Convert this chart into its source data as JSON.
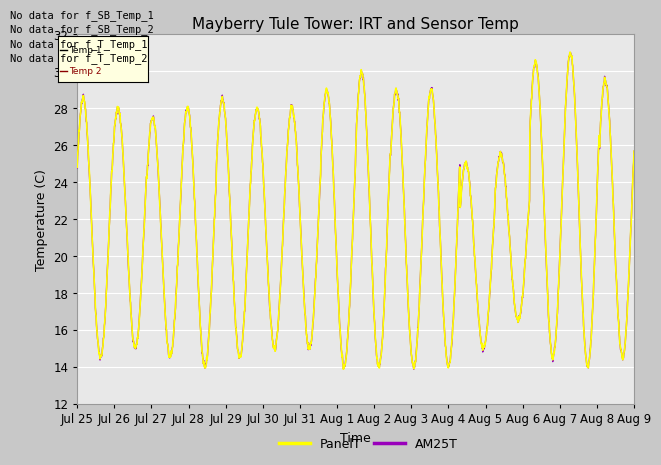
{
  "title": "Mayberry Tule Tower: IRT and Sensor Temp",
  "xlabel": "Time",
  "ylabel": "Temperature (C)",
  "ylim": [
    12,
    32
  ],
  "yticks": [
    12,
    14,
    16,
    18,
    20,
    22,
    24,
    26,
    28,
    30,
    32
  ],
  "xtick_labels": [
    "Jul 25",
    "Jul 26",
    "Jul 27",
    "Jul 28",
    "Jul 29",
    "Jul 30",
    "Jul 31",
    "Aug 1",
    "Aug 2",
    "Aug 3",
    "Aug 4",
    "Aug 5",
    "Aug 6",
    "Aug 7",
    "Aug 8",
    "Aug 9"
  ],
  "panel_color": "#ffff00",
  "am25_color": "#9900bb",
  "no_data_texts": [
    "No data for f_SB_Temp_1",
    "No data for f_SB_Temp_2",
    "No data for f_T_Temp_1",
    "No data for f_T_Temp_2"
  ],
  "legend_labels": [
    "PanelT",
    "AM25T"
  ],
  "fig_bg_color": "#c8c8c8",
  "plot_bg_color": "#e8e8e8",
  "grid_color": "#ffffff",
  "n_days": 16,
  "pts_per_day": 96
}
